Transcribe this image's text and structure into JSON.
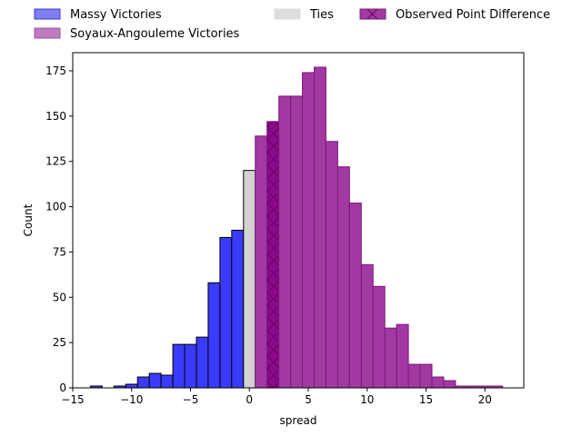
{
  "chart_data": {
    "type": "bar",
    "xlabel": "spread",
    "ylabel": "Count",
    "xlim": [
      -15.0,
      23.3
    ],
    "ylim": [
      0,
      185
    ],
    "xticks": [
      -15,
      -10,
      -5,
      0,
      5,
      10,
      15,
      20
    ],
    "yticks": [
      0,
      25,
      50,
      75,
      100,
      125,
      150,
      175
    ],
    "bin_width": 1,
    "bins": [
      {
        "left": -13.5,
        "count": 1,
        "group": "massy"
      },
      {
        "left": -12.5,
        "count": 0,
        "group": "massy"
      },
      {
        "left": -11.5,
        "count": 1,
        "group": "massy"
      },
      {
        "left": -10.5,
        "count": 2,
        "group": "massy"
      },
      {
        "left": -9.5,
        "count": 6,
        "group": "massy"
      },
      {
        "left": -8.5,
        "count": 8,
        "group": "massy"
      },
      {
        "left": -7.5,
        "count": 7,
        "group": "massy"
      },
      {
        "left": -6.5,
        "count": 24,
        "group": "massy"
      },
      {
        "left": -5.5,
        "count": 24,
        "group": "massy"
      },
      {
        "left": -4.5,
        "count": 28,
        "group": "massy"
      },
      {
        "left": -3.5,
        "count": 58,
        "group": "massy"
      },
      {
        "left": -2.5,
        "count": 83,
        "group": "massy"
      },
      {
        "left": -1.5,
        "count": 87,
        "group": "massy"
      },
      {
        "left": -0.5,
        "count": 120,
        "group": "ties"
      },
      {
        "left": 0.5,
        "count": 139,
        "group": "soyaux"
      },
      {
        "left": 1.5,
        "count": 147,
        "group": "observed"
      },
      {
        "left": 2.5,
        "count": 161,
        "group": "soyaux"
      },
      {
        "left": 3.5,
        "count": 161,
        "group": "soyaux"
      },
      {
        "left": 4.5,
        "count": 174,
        "group": "soyaux"
      },
      {
        "left": 5.5,
        "count": 177,
        "group": "soyaux"
      },
      {
        "left": 6.5,
        "count": 136,
        "group": "soyaux"
      },
      {
        "left": 7.5,
        "count": 122,
        "group": "soyaux"
      },
      {
        "left": 8.5,
        "count": 102,
        "group": "soyaux"
      },
      {
        "left": 9.5,
        "count": 68,
        "group": "soyaux"
      },
      {
        "left": 10.5,
        "count": 56,
        "group": "soyaux"
      },
      {
        "left": 11.5,
        "count": 33,
        "group": "soyaux"
      },
      {
        "left": 12.5,
        "count": 35,
        "group": "soyaux"
      },
      {
        "left": 13.5,
        "count": 13,
        "group": "soyaux"
      },
      {
        "left": 14.5,
        "count": 13,
        "group": "soyaux"
      },
      {
        "left": 15.5,
        "count": 6,
        "group": "soyaux"
      },
      {
        "left": 16.5,
        "count": 4,
        "group": "soyaux"
      },
      {
        "left": 17.5,
        "count": 1,
        "group": "soyaux"
      },
      {
        "left": 18.5,
        "count": 1,
        "group": "soyaux"
      },
      {
        "left": 19.5,
        "count": 1,
        "group": "soyaux"
      },
      {
        "left": 20.5,
        "count": 1,
        "group": "soyaux"
      }
    ],
    "legend": {
      "placement": "top",
      "entries": [
        {
          "key": "massy",
          "label": "Massy Victories"
        },
        {
          "key": "soyaux",
          "label": "Soyaux-Angouleme Victories"
        },
        {
          "key": "ties",
          "label": "Ties"
        },
        {
          "key": "observed",
          "label": "Observed Point Difference"
        }
      ]
    },
    "styles": {
      "massy": {
        "fill": "#3b3bff",
        "stroke": "#000000",
        "legend_fill": "#7f7ff5",
        "legend_stroke": "#3b3bcc"
      },
      "soyaux": {
        "fill": "#a238a2",
        "stroke": "#7a1a7a",
        "legend_fill": "#c07ac0",
        "legend_stroke": "#a050a0"
      },
      "ties": {
        "fill": "#d3d3d3",
        "stroke": "#000000",
        "legend_fill": "#dddddd",
        "legend_stroke": "#dddddd"
      },
      "observed": {
        "fill": "#8b0a8b",
        "stroke": "#7a1a7a",
        "hatch": "#6a006a",
        "legend_fill": "#a238a2",
        "legend_stroke": "#7a1a7a"
      }
    }
  }
}
